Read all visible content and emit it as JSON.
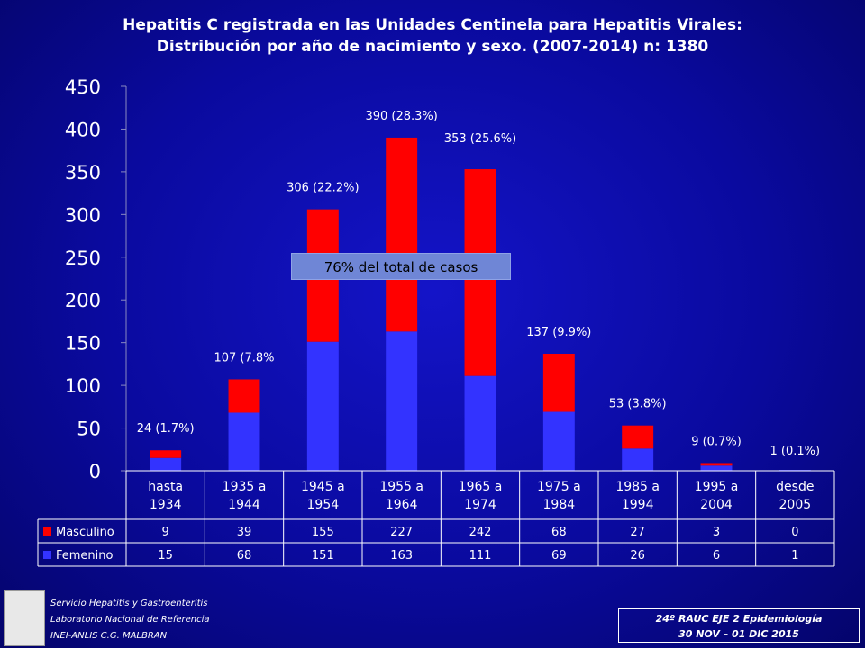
{
  "title_line1": "Hepatitis C registrada en las Unidades Centinela para Hepatitis Virales:",
  "title_line2": "Distribución por año de nacimiento y sexo. (2007-2014) n: 1380",
  "callout": "76% del total de casos",
  "footer": {
    "line1": "Servicio Hepatitis y Gastroenteritis",
    "line2": "Laboratorio Nacional de Referencia",
    "line3": "INEI-ANLIS C.G. MALBRAN",
    "box_line1": "24º RAUC  EJE 2  Epidemiología",
    "box_line2": "30 NOV – 01 DIC  2015"
  },
  "chart_data": {
    "type": "bar",
    "stacked": true,
    "categories": [
      "hasta\n1934",
      "1935 a\n1944",
      "1945 a\n1954",
      "1955 a\n1964",
      "1965 a\n1974",
      "1975 a\n1984",
      "1985 a\n1994",
      "1995 a\n2004",
      "desde\n2005"
    ],
    "series": [
      {
        "name": "Femenino",
        "color": "#3333ff",
        "values": [
          15,
          68,
          151,
          163,
          111,
          69,
          26,
          6,
          1
        ]
      },
      {
        "name": "Masculino",
        "color": "#ff0000",
        "values": [
          9,
          39,
          155,
          227,
          242,
          68,
          27,
          3,
          0
        ]
      }
    ],
    "total_labels": [
      "24 (1.7%)",
      "107 (7.8%",
      "306 (22.2%)",
      "390 (28.3%)",
      "353 (25.6%)",
      "137 (9.9%)",
      "53 (3.8%)",
      "9 (0.7%)",
      "1 (0.1%)"
    ],
    "ylim": [
      0,
      450
    ],
    "yticks": [
      0,
      50,
      100,
      150,
      200,
      250,
      300,
      350,
      400,
      450
    ],
    "grid": false,
    "legend": "data-table"
  }
}
